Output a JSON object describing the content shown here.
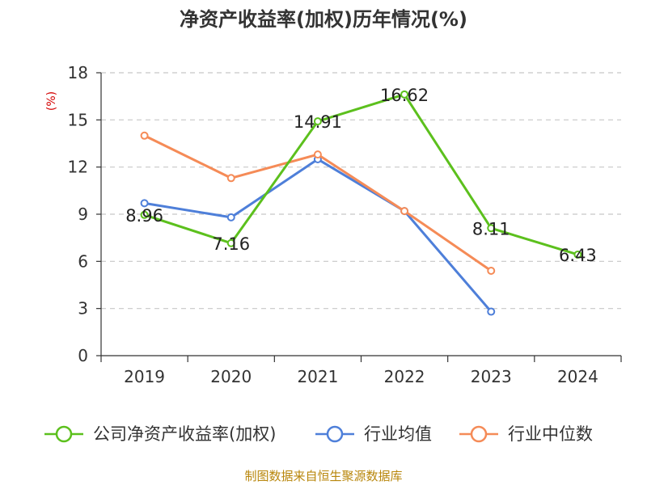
{
  "chart_data": {
    "type": "line",
    "title": "净资产收益率(加权)历年情况(%)",
    "ylabel": "(%)",
    "categories": [
      "2019",
      "2020",
      "2021",
      "2022",
      "2023",
      "2024"
    ],
    "ylim": [
      0,
      18
    ],
    "yticks": [
      0,
      3,
      6,
      9,
      12,
      15,
      18
    ],
    "grid": true,
    "legend_position": "bottom",
    "series": [
      {
        "name": "公司净资产收益率(加权)",
        "color": "#5cc01d",
        "values": [
          8.96,
          7.16,
          14.91,
          16.62,
          8.11,
          6.43
        ],
        "labels": [
          "8.96",
          "7.16",
          "14.91",
          "16.62",
          "8.11",
          "6.43"
        ],
        "show_labels": true
      },
      {
        "name": "行业均值",
        "color": "#4e7fd9",
        "values": [
          9.7,
          8.8,
          12.5,
          9.2,
          2.8,
          null
        ],
        "show_labels": false
      },
      {
        "name": "行业中位数",
        "color": "#f58b57",
        "values": [
          14.0,
          11.3,
          12.8,
          9.2,
          5.4,
          null
        ],
        "show_labels": false
      }
    ]
  },
  "source_text": "制图数据来自恒生聚源数据库"
}
